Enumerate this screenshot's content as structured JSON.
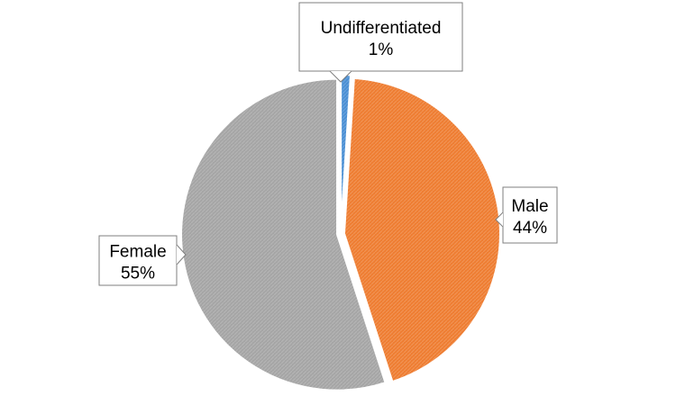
{
  "chart_data": {
    "type": "pie",
    "title": "",
    "start_angle_deg": 0,
    "direction": "clockwise",
    "slices": [
      {
        "label": "Undifferentiated",
        "value": 1,
        "value_label": "1%",
        "color": "#4a8fd4"
      },
      {
        "label": "Male",
        "value": 44,
        "value_label": "44%",
        "color": "#ee7d32"
      },
      {
        "label": "Female",
        "value": 55,
        "value_label": "55%",
        "color": "#a5a5a5"
      }
    ],
    "label_style": "callout"
  }
}
